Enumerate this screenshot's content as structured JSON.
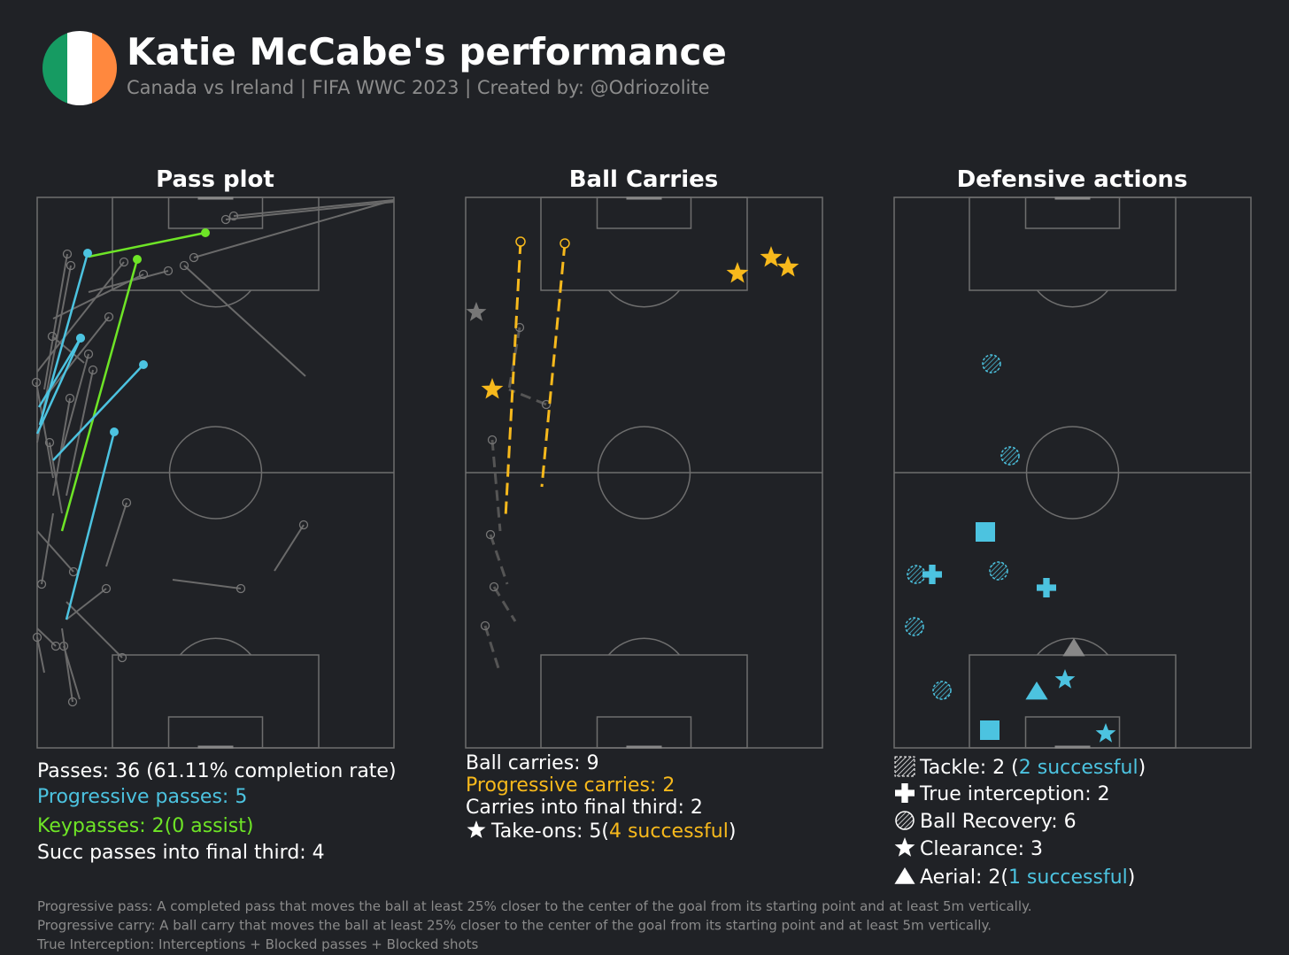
{
  "header": {
    "title": "Katie McCabe's performance",
    "subtitle": "Canada vs Ireland | FIFA WWC 2023 | Created by: @Odriozolite"
  },
  "panels": [
    {
      "title": "Pass plot",
      "stats": [
        [
          {
            "text": "Passes: 36 (61.11% completion rate)",
            "color": "#ffffff"
          }
        ],
        [
          {
            "text": "Progressive passes: 5",
            "color": "#4cc3e0"
          }
        ],
        [
          {
            "text": "Keypasses: 2(0 assist)",
            "color": "#6ee526"
          }
        ],
        [
          {
            "text": "Succ passes into final third: 4",
            "color": "#ffffff"
          }
        ]
      ]
    },
    {
      "title": "Ball Carries",
      "stats": [
        [
          {
            "text": "Ball carries: 9",
            "color": "#ffffff"
          }
        ],
        [
          {
            "text": "Progressive carries: 2",
            "color": "#f7b91c"
          }
        ],
        [
          {
            "text": "Carries into final third: 2",
            "color": "#ffffff"
          }
        ],
        [
          {
            "text": "Take-ons: 5(",
            "color": "#ffffff"
          },
          {
            "text": "4 successful",
            "color": "#f7b91c"
          },
          {
            "text": ")",
            "color": "#ffffff"
          }
        ]
      ]
    },
    {
      "title": "Defensive actions",
      "stats": [
        [
          {
            "text": "Tackle: 2 (",
            "color": "#ffffff"
          },
          {
            "text": "2 successful",
            "color": "#4cc3e0"
          },
          {
            "text": ")",
            "color": "#ffffff"
          }
        ],
        [
          {
            "text": "True interception: 2",
            "color": "#ffffff"
          }
        ],
        [
          {
            "text": "Ball Recovery: 6",
            "color": "#ffffff"
          }
        ],
        [
          {
            "text": "Clearance: 3",
            "color": "#ffffff"
          }
        ],
        [
          {
            "text": "Aerial: 2(",
            "color": "#ffffff"
          },
          {
            "text": "1 successful",
            "color": "#4cc3e0"
          },
          {
            "text": ")",
            "color": "#ffffff"
          }
        ]
      ]
    }
  ],
  "footnotes": [
    "Progressive pass: A completed pass that moves the ball at least 25% closer to the center of the goal from its starting point and at least 5m vertically.",
    "Progressive carry: A ball carry that moves the ball at least 25% closer to the center of the goal from its starting point and at least 5m vertically.",
    "True Interception: Interceptions + Blocked passes + Blocked shots"
  ]
}
